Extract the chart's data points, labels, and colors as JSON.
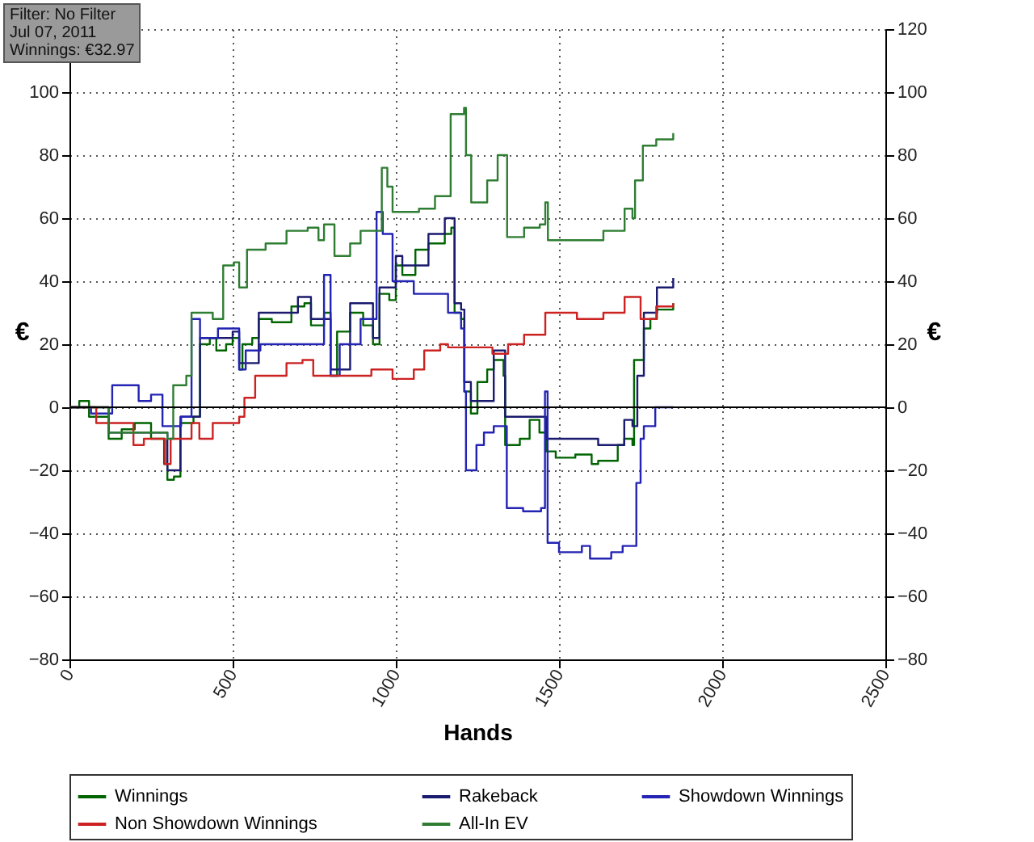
{
  "chart_data": {
    "type": "step",
    "xlabel": "Hands",
    "ylabel": "€",
    "y2label": "€",
    "annotations": [
      "Filter: No Filter",
      "Jul 07, 2011",
      "Winnings: €32.97"
    ],
    "xlim": [
      0,
      2500
    ],
    "xticks": [
      0,
      500,
      1000,
      1500,
      2000,
      2500
    ],
    "ylim": [
      -80,
      120
    ],
    "yticks": [
      -80,
      -60,
      -40,
      -20,
      0,
      20,
      40,
      60,
      80,
      100,
      {
        "value": 120,
        "label": null
      }
    ],
    "y2lim": [
      -80,
      120
    ],
    "y2ticks": [
      -80,
      -60,
      -40,
      -20,
      0,
      20,
      40,
      60,
      80,
      100,
      120
    ],
    "grid": true,
    "legend": "bottom",
    "marker": "none",
    "line_style": "solid",
    "ref_lines": [
      {
        "axis": "y",
        "value": 0,
        "color": "#000000"
      }
    ],
    "series": [
      {
        "name": "Winnings",
        "color": "#006400",
        "x": [
          0,
          30,
          60,
          120,
          160,
          200,
          250,
          290,
          300,
          320,
          340,
          380,
          400,
          430,
          450,
          480,
          500,
          520,
          530,
          560,
          580,
          620,
          680,
          720,
          740,
          780,
          800,
          820,
          860,
          900,
          930,
          950,
          980,
          1000,
          1020,
          1060,
          1100,
          1150,
          1170,
          1180,
          1200,
          1210,
          1230,
          1250,
          1280,
          1300,
          1330,
          1335,
          1380,
          1410,
          1440,
          1460,
          1490,
          1550,
          1600,
          1620,
          1680,
          1700,
          1725,
          1730,
          1760,
          1780,
          1800,
          1830,
          1850
        ],
        "values": [
          0,
          2,
          -3,
          -10,
          -7,
          -5,
          -10,
          -18,
          -23,
          -22,
          -5,
          -3,
          20,
          22,
          18,
          20,
          22,
          12,
          20,
          22,
          28,
          27,
          32,
          33,
          26,
          30,
          10,
          24,
          30,
          26,
          20,
          36,
          34,
          45,
          42,
          50,
          52,
          55,
          57,
          30,
          28,
          5,
          -2,
          8,
          12,
          15,
          10,
          -12,
          -10,
          -4,
          -8,
          -14,
          -16,
          -15,
          -18,
          -17,
          -12,
          -10,
          -12,
          15,
          25,
          28,
          31,
          31,
          33
        ]
      },
      {
        "name": "Rakeback",
        "color": "#1a1a6e",
        "x": [
          0,
          120,
          300,
          340,
          400,
          500,
          520,
          580,
          700,
          740,
          800,
          860,
          930,
          950,
          1000,
          1020,
          1100,
          1150,
          1170,
          1180,
          1200,
          1210,
          1230,
          1300,
          1335,
          1440,
          1460,
          1550,
          1620,
          1700,
          1725,
          1740,
          1760,
          1800,
          1850
        ],
        "values": [
          0,
          -8,
          -20,
          -3,
          22,
          24,
          14,
          30,
          35,
          28,
          12,
          33,
          22,
          38,
          48,
          45,
          55,
          60,
          60,
          33,
          31,
          8,
          2,
          18,
          -3,
          -3,
          -10,
          -10,
          -12,
          -4,
          -6,
          10,
          30,
          38,
          41
        ]
      },
      {
        "name": "Showdown Winnings",
        "color": "#2323b4",
        "x": [
          0,
          66,
          131,
          212,
          250,
          285,
          342,
          374,
          400,
          455,
          520,
          540,
          585,
          780,
          800,
          828,
          892,
          941,
          960,
          990,
          1055,
          1150,
          1160,
          1200,
          1210,
          1215,
          1247,
          1270,
          1300,
          1340,
          1390,
          1445,
          1457,
          1465,
          1500,
          1570,
          1595,
          1660,
          1695,
          1720,
          1737,
          1750,
          1760,
          1795,
          1850
        ],
        "values": [
          0,
          -2,
          7,
          2,
          4,
          -6,
          -3,
          28,
          22,
          25,
          12,
          18,
          20,
          42,
          10,
          20,
          28,
          62,
          55,
          40,
          36,
          36,
          30,
          25,
          5,
          -20,
          -12,
          -8,
          -6,
          -32,
          -33,
          -32,
          5,
          -43,
          -46,
          -44,
          -48,
          -46,
          -44,
          -44,
          -24,
          -10,
          -6,
          0,
          0
        ]
      },
      {
        "name": "Non Showdown Winnings",
        "color": "#cc2222",
        "x": [
          0,
          82,
          196,
          228,
          293,
          310,
          374,
          398,
          439,
          520,
          536,
          569,
          665,
          714,
          747,
          828,
          925,
          990,
          1055,
          1087,
          1136,
          1160,
          1247,
          1296,
          1344,
          1393,
          1458,
          1555,
          1636,
          1701,
          1750,
          1798,
          1850
        ],
        "values": [
          0,
          -5,
          -12,
          -10,
          -18,
          -10,
          -5,
          -10,
          -5,
          -3,
          3,
          10,
          14,
          15,
          10,
          10,
          12,
          9,
          12,
          18,
          20,
          19,
          19,
          17,
          20,
          23,
          30,
          28,
          30,
          35,
          28,
          32,
          33
        ]
      },
      {
        "name": "All-In EV",
        "color": "#2e7d32",
        "x": [
          0,
          120,
          300,
          318,
          358,
          374,
          439,
          471,
          504,
          520,
          544,
          601,
          665,
          730,
          763,
          780,
          812,
          860,
          892,
          941,
          957,
          974,
          990,
          1071,
          1120,
          1160,
          1168,
          1209,
          1215,
          1231,
          1280,
          1312,
          1336,
          1341,
          1393,
          1441,
          1458,
          1466,
          1555,
          1636,
          1701,
          1725,
          1733,
          1757,
          1798,
          1850
        ],
        "values": [
          0,
          -8,
          -10,
          7,
          10,
          30,
          28,
          45,
          46,
          38,
          50,
          52,
          56,
          57,
          53,
          58,
          48,
          52,
          56,
          56,
          76,
          70,
          62,
          63,
          67,
          67,
          93,
          95,
          80,
          65,
          72,
          80,
          80,
          54,
          57,
          58,
          65,
          53,
          53,
          56,
          63,
          60,
          72,
          83,
          85,
          87
        ]
      }
    ]
  }
}
